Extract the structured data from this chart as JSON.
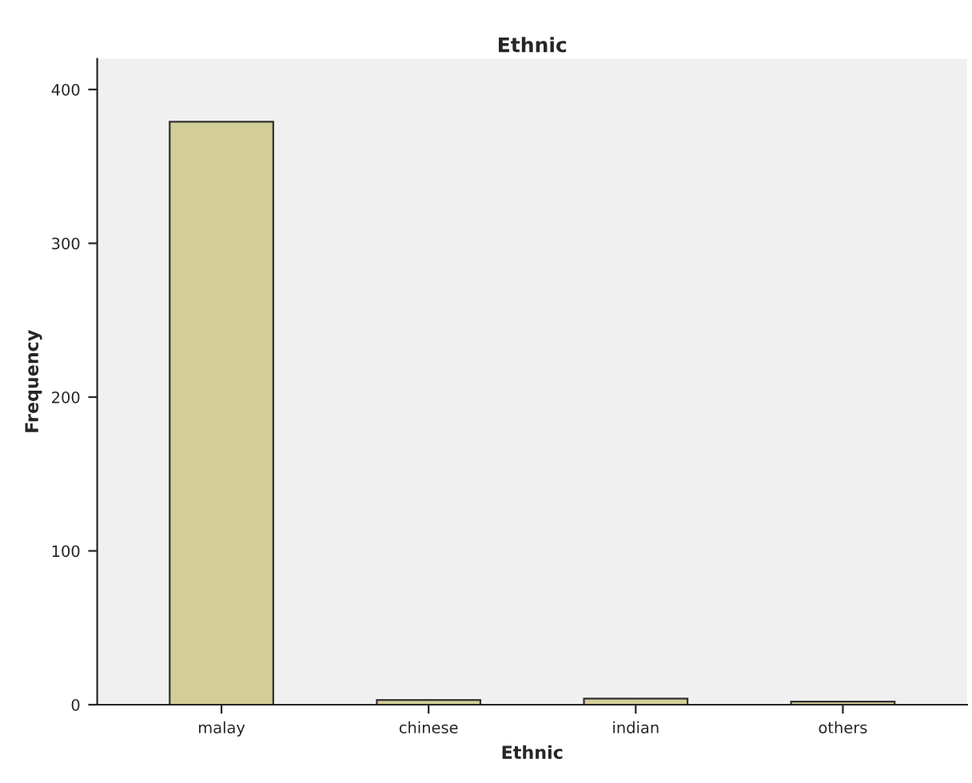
{
  "chart_data": {
    "type": "bar",
    "title": "Ethnic",
    "xlabel": "Ethnic",
    "ylabel": "Frequency",
    "categories": [
      "malay",
      "chinese",
      "indian",
      "others"
    ],
    "values": [
      379,
      3,
      4,
      2
    ],
    "color": "#d3ce97",
    "ylim": [
      0,
      420
    ],
    "yticks": [
      0,
      100,
      200,
      300,
      400
    ],
    "grid": false
  }
}
